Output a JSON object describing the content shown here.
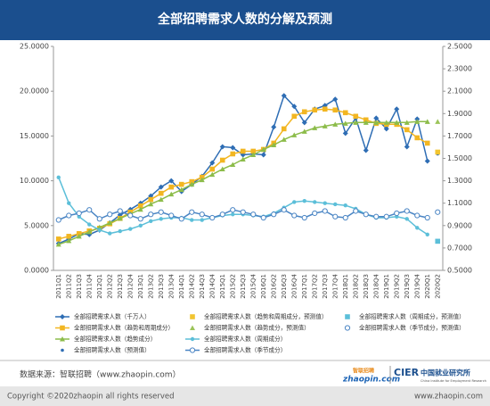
{
  "header": {
    "title": "全部招聘需求人数的分解及预测"
  },
  "chart_data": {
    "type": "line",
    "categories": [
      "2011Q1",
      "2011Q2",
      "2011Q3",
      "2011Q4",
      "2012Q1",
      "2012Q2",
      "2012Q3",
      "2012Q4",
      "2013Q1",
      "2013Q2",
      "2013Q3",
      "2013Q4",
      "2014Q1",
      "2014Q2",
      "2014Q3",
      "2014Q4",
      "2015Q1",
      "2015Q2",
      "2015Q3",
      "2015Q4",
      "2016Q1",
      "2016Q2",
      "2016Q3",
      "2016Q4",
      "2017Q1",
      "2017Q2",
      "2017Q3",
      "2017Q4",
      "2018Q1",
      "2018Q2",
      "2018Q3",
      "2018Q4",
      "2019Q1",
      "2019Q2",
      "2019Q3",
      "2019Q4",
      "2020Q1",
      "2020Q2"
    ],
    "ylim": [
      0,
      25
    ],
    "yticks": [
      {
        "value": 0,
        "label": "0.0000"
      },
      {
        "value": 5,
        "label": "5.0000"
      },
      {
        "value": 10,
        "label": "10.0000"
      },
      {
        "value": 15,
        "label": "15.0000"
      },
      {
        "value": 20,
        "label": "20.0000"
      },
      {
        "value": 25,
        "label": "25.0000"
      }
    ],
    "y2lim": [
      0.5,
      2.5
    ],
    "y2ticks": [
      {
        "value": 0.5,
        "label": "0.5000"
      },
      {
        "value": 0.7,
        "label": "0.7000"
      },
      {
        "value": 0.9,
        "label": "0.9000"
      },
      {
        "value": 1.1,
        "label": "1.1000"
      },
      {
        "value": 1.3,
        "label": "1.3000"
      },
      {
        "value": 1.5,
        "label": "1.5000"
      },
      {
        "value": 1.7,
        "label": "1.7000"
      },
      {
        "value": 1.9,
        "label": "1.9000"
      },
      {
        "value": 2.1,
        "label": "2.1000"
      },
      {
        "value": 2.3,
        "label": "2.3000"
      },
      {
        "value": 2.5,
        "label": "2.5000"
      }
    ],
    "grid": false,
    "series": [
      {
        "name": "全部招聘需求人数（千万人）",
        "color": "#2e6db4",
        "mark": "line",
        "marker": "diamond",
        "values": [
          3.0,
          3.5,
          4.1,
          4.0,
          4.5,
          5.3,
          6.2,
          6.8,
          7.5,
          8.3,
          9.3,
          10.0,
          8.8,
          9.6,
          10.5,
          12.0,
          13.8,
          13.7,
          12.9,
          13.0,
          12.9,
          16.0,
          19.5,
          18.3,
          16.5,
          18.0,
          18.4,
          19.1,
          15.3,
          17.0,
          13.4,
          17.0,
          15.8,
          18.0,
          13.8,
          16.9,
          12.2,
          null
        ]
      },
      {
        "name": "全部招聘需求人数（趋势和周期成分）",
        "color": "#f2b622",
        "mark": "line",
        "marker": "square",
        "values": [
          3.5,
          3.8,
          4.1,
          4.4,
          4.7,
          5.2,
          5.8,
          6.5,
          7.2,
          7.9,
          8.6,
          9.3,
          9.6,
          9.9,
          10.4,
          11.3,
          12.3,
          13.0,
          13.3,
          13.3,
          13.5,
          14.2,
          15.8,
          17.2,
          17.7,
          17.9,
          18.0,
          17.9,
          17.6,
          17.2,
          16.8,
          16.4,
          16.3,
          16.3,
          15.7,
          14.8,
          14.2,
          null
        ]
      },
      {
        "name": "全部招聘需求人数（趋势成分）",
        "color": "#8cbc4a",
        "mark": "line",
        "marker": "triangle",
        "values": [
          2.9,
          3.3,
          3.8,
          4.3,
          4.8,
          5.3,
          5.8,
          6.3,
          6.8,
          7.4,
          7.9,
          8.5,
          9.0,
          9.6,
          10.1,
          10.7,
          11.3,
          11.8,
          12.4,
          12.9,
          13.5,
          14.0,
          14.6,
          15.1,
          15.5,
          15.9,
          16.1,
          16.3,
          16.4,
          16.5,
          16.5,
          16.5,
          16.5,
          16.5,
          16.5,
          16.6,
          16.6,
          null
        ]
      },
      {
        "name": "全部招聘需求人数（预测值）",
        "color": "#2e6db4",
        "mark": "marker",
        "marker": "dot",
        "values": [
          null,
          null,
          null,
          null,
          null,
          null,
          null,
          null,
          null,
          null,
          null,
          null,
          null,
          null,
          null,
          null,
          null,
          null,
          null,
          null,
          null,
          null,
          null,
          null,
          null,
          null,
          null,
          null,
          null,
          null,
          null,
          null,
          null,
          null,
          null,
          null,
          null,
          13.0
        ]
      },
      {
        "name": "全部招聘需求人数（趋势和周期成分，预测值）",
        "color": "#f2c530",
        "mark": "marker",
        "marker": "square",
        "values": [
          null,
          null,
          null,
          null,
          null,
          null,
          null,
          null,
          null,
          null,
          null,
          null,
          null,
          null,
          null,
          null,
          null,
          null,
          null,
          null,
          null,
          null,
          null,
          null,
          null,
          null,
          null,
          null,
          null,
          null,
          null,
          null,
          null,
          null,
          null,
          null,
          null,
          13.2
        ]
      },
      {
        "name": "全部招聘需求人数（趋势成分，预测值）",
        "color": "#9cc45a",
        "mark": "marker",
        "marker": "triangle",
        "values": [
          null,
          null,
          null,
          null,
          null,
          null,
          null,
          null,
          null,
          null,
          null,
          null,
          null,
          null,
          null,
          null,
          null,
          null,
          null,
          null,
          null,
          null,
          null,
          null,
          null,
          null,
          null,
          null,
          null,
          null,
          null,
          null,
          null,
          null,
          null,
          null,
          null,
          16.6
        ]
      },
      {
        "name": "全部招聘需求人数（周期成分）",
        "color": "#5cbfd9",
        "mark": "line",
        "marker": "circle",
        "axis": "y2",
        "values": [
          1.33,
          1.1,
          0.98,
          0.91,
          0.86,
          0.83,
          0.85,
          0.87,
          0.9,
          0.94,
          0.96,
          0.97,
          0.97,
          0.95,
          0.95,
          0.97,
          0.99,
          1.0,
          1.0,
          0.99,
          0.98,
          1.01,
          1.06,
          1.11,
          1.12,
          1.11,
          1.1,
          1.09,
          1.08,
          1.05,
          1.0,
          0.97,
          0.97,
          0.98,
          0.96,
          0.88,
          0.82,
          null
        ]
      },
      {
        "name": "全部招聘需求人数（季节成分）",
        "color": "#4a85c4",
        "mark": "line",
        "marker": "hollow-circle",
        "axis": "y2",
        "values": [
          0.95,
          0.99,
          1.01,
          1.04,
          0.96,
          1.0,
          1.03,
          0.99,
          0.96,
          1.0,
          1.02,
          0.99,
          0.96,
          1.02,
          1.0,
          0.97,
          1.0,
          1.04,
          1.02,
          1.0,
          0.97,
          1.0,
          1.04,
          0.99,
          0.97,
          1.01,
          1.03,
          0.98,
          0.97,
          1.03,
          1.0,
          0.98,
          0.98,
          1.01,
          1.03,
          0.99,
          0.97,
          null
        ]
      },
      {
        "name": "全部招聘需求人数（周期成分，预测值）",
        "color": "#5cbfd9",
        "mark": "marker",
        "marker": "square",
        "axis": "y2",
        "values": [
          null,
          null,
          null,
          null,
          null,
          null,
          null,
          null,
          null,
          null,
          null,
          null,
          null,
          null,
          null,
          null,
          null,
          null,
          null,
          null,
          null,
          null,
          null,
          null,
          null,
          null,
          null,
          null,
          null,
          null,
          null,
          null,
          null,
          null,
          null,
          null,
          null,
          0.76
        ]
      },
      {
        "name": "全部招聘需求人数（季节成分，预测值）",
        "color": "#4a85c4",
        "mark": "marker",
        "marker": "hollow-circle",
        "axis": "y2",
        "values": [
          null,
          null,
          null,
          null,
          null,
          null,
          null,
          null,
          null,
          null,
          null,
          null,
          null,
          null,
          null,
          null,
          null,
          null,
          null,
          null,
          null,
          null,
          null,
          null,
          null,
          null,
          null,
          null,
          null,
          null,
          null,
          null,
          null,
          null,
          null,
          null,
          null,
          1.02
        ]
      }
    ]
  },
  "footer": {
    "source": "数据来源：智联招聘（www.zhaopin.com）",
    "logo_cn": "智联招聘",
    "logo_en": "zhaopin.com",
    "cier": "CIER",
    "cier_cn": "中国就业研究所",
    "cier_en": "China Institute for Employment Research",
    "copyright": "Copyright ©2020zhaopin all rights reserved",
    "site": "www.zhaopin.com"
  }
}
